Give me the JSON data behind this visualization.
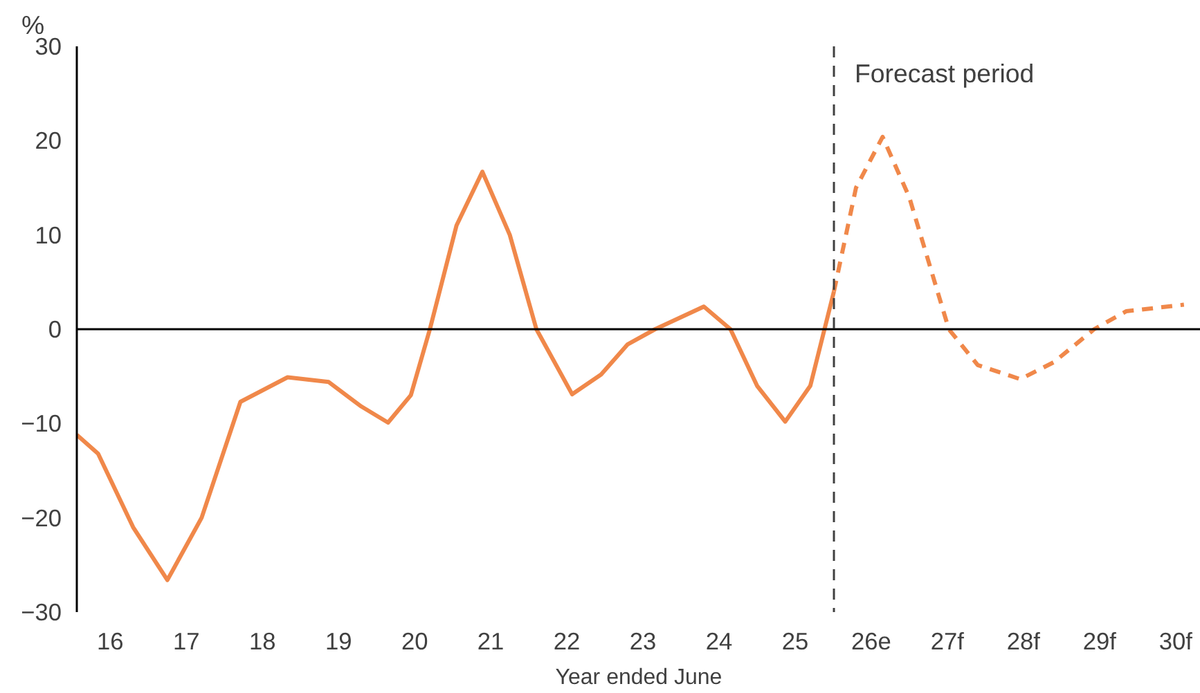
{
  "chart_data": {
    "type": "line",
    "ylabel": "%",
    "xlabel": "Year ended June",
    "xlim": [
      15.56,
      30.33
    ],
    "ylim": [
      -30,
      30
    ],
    "yticks": [
      -30,
      -20,
      -10,
      0,
      10,
      20,
      30
    ],
    "xticks": [
      16,
      17,
      18,
      19,
      20,
      21,
      22,
      23,
      24,
      25,
      {
        "value": 26,
        "label": "26e"
      },
      {
        "value": 27,
        "label": "27f"
      },
      {
        "value": 28,
        "label": "28f"
      },
      {
        "value": 29,
        "label": "29f"
      },
      {
        "value": 30,
        "label": "30f"
      }
    ],
    "grid": false,
    "marker": "none",
    "series": [
      {
        "color": "#f0884a",
        "line_style": "solid",
        "x": [
          15.56,
          15.84,
          16.3,
          16.75,
          17.2,
          17.71,
          18.33,
          18.87,
          19.3,
          19.65,
          19.95,
          20.2,
          20.55,
          20.89,
          21.25,
          21.6,
          22.07,
          22.45,
          22.8,
          23.16,
          23.8,
          24.15,
          24.5,
          24.87,
          25.2,
          25.51
        ],
        "values": [
          -11.2,
          -13.2,
          -21.0,
          -26.6,
          -20.0,
          -7.7,
          -5.1,
          -5.6,
          -8.2,
          -9.9,
          -7.0,
          0,
          11.0,
          16.7,
          10.0,
          0,
          -6.9,
          -4.8,
          -1.6,
          0,
          2.4,
          0,
          -6.0,
          -9.8,
          -6.0,
          4.0
        ]
      },
      {
        "color": "#f0884a",
        "line_style": "dashed",
        "x": [
          25.51,
          25.8,
          26.15,
          26.5,
          27.02,
          27.4,
          27.96,
          28.4,
          28.93,
          29.35,
          30.11
        ],
        "values": [
          4.0,
          15.0,
          20.4,
          14.0,
          0,
          -3.8,
          -5.3,
          -3.5,
          0,
          1.9,
          2.6
        ]
      }
    ],
    "ref_lines": [
      {
        "axis": "y",
        "value": 0,
        "color": "#000000",
        "line_style": "solid"
      },
      {
        "axis": "x",
        "value": 25.51,
        "label": "Forecast period",
        "color": "#404040",
        "line_style": "dashed"
      }
    ]
  }
}
